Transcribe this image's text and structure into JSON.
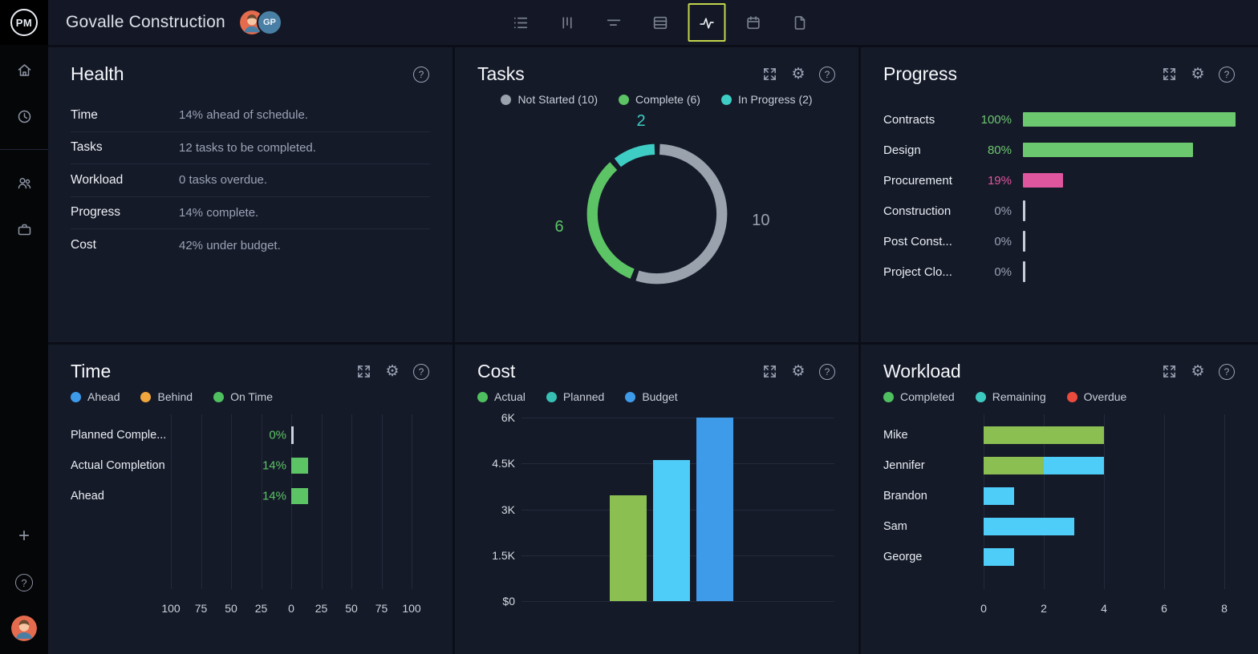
{
  "colors": {
    "accent_selected_border": "#c2d54b",
    "panel_bg": "#151a29",
    "green": "#5cc464",
    "olive_green": "#8cbf52",
    "teal": "#3ecdc4",
    "light_blue": "#4ecdf8",
    "blue": "#3d9bea",
    "orange": "#f0a63c",
    "red": "#ea4b3d",
    "pink": "#e0569e",
    "gray_series": "#9aa2ae"
  },
  "header": {
    "logo": "PM",
    "title": "Govalle Construction",
    "avatar_initials": "GP",
    "toolbar": {
      "items": [
        "list-view",
        "board-view",
        "gantt-view",
        "sheet-view",
        "activity-view",
        "calendar-view",
        "docs-view"
      ],
      "selected": "activity-view"
    }
  },
  "sidebar": {
    "top_icons": [
      "home",
      "recent",
      "team",
      "portfolio"
    ],
    "bottom_icons": [
      "add-new",
      "help"
    ]
  },
  "panels": {
    "health": {
      "title": "Health",
      "rows": [
        {
          "label": "Time",
          "value": "14% ahead of schedule."
        },
        {
          "label": "Tasks",
          "value": "12 tasks to be completed."
        },
        {
          "label": "Workload",
          "value": "0 tasks overdue."
        },
        {
          "label": "Progress",
          "value": "14% complete."
        },
        {
          "label": "Cost",
          "value": "42% under budget."
        }
      ]
    },
    "tasks": {
      "title": "Tasks"
    },
    "progress": {
      "title": "Progress"
    },
    "time": {
      "title": "Time"
    },
    "cost": {
      "title": "Cost"
    },
    "workload": {
      "title": "Workload"
    }
  },
  "chart_data": [
    {
      "panel": "tasks",
      "type": "pie",
      "donut": true,
      "labels": [
        "Not Started",
        "Complete",
        "In Progress"
      ],
      "values": [
        10,
        6,
        2
      ],
      "legend_labels": [
        "Not Started (10)",
        "Complete (6)",
        "In Progress (2)"
      ],
      "colors": [
        "#9aa2ae",
        "#5cc464",
        "#3ecdc4"
      ],
      "callout_labels": {
        "top": "2",
        "left": "6",
        "right": "10"
      },
      "legend_position": "top"
    },
    {
      "panel": "progress",
      "type": "bar",
      "orientation": "horizontal",
      "unit": "%",
      "categories": [
        "Contracts",
        "Design",
        "Procurement",
        "Construction",
        "Post Const...",
        "Project Clo..."
      ],
      "values": [
        100,
        80,
        19,
        0,
        0,
        0
      ],
      "value_labels": [
        "100%",
        "80%",
        "19%",
        "0%",
        "0%",
        "0%"
      ],
      "bar_colors": [
        "#6cc86e",
        "#6cc86e",
        "#e0569e",
        "none",
        "none",
        "none"
      ],
      "label_colors": [
        "#6cc86e",
        "#6cc86e",
        "#e0569e",
        "#98a0b0",
        "#98a0b0",
        "#98a0b0"
      ],
      "xlim": [
        0,
        100
      ],
      "grid": false
    },
    {
      "panel": "time",
      "type": "bar",
      "orientation": "horizontal",
      "unit": "%",
      "legend": [
        {
          "label": "Ahead",
          "color": "#3d9bea"
        },
        {
          "label": "Behind",
          "color": "#f0a63c"
        },
        {
          "label": "On Time",
          "color": "#4fc05f"
        }
      ],
      "categories": [
        "Planned Comple...",
        "Actual Completion",
        "Ahead"
      ],
      "values": [
        0,
        14,
        14
      ],
      "value_labels": [
        "0%",
        "14%",
        "14%"
      ],
      "bar_color": "#5cc464",
      "xlim": [
        -100,
        100
      ],
      "xticks": [
        "100",
        "75",
        "50",
        "25",
        "0",
        "25",
        "50",
        "75",
        "100"
      ],
      "grid": true
    },
    {
      "panel": "cost",
      "type": "bar",
      "orientation": "vertical",
      "legend": [
        {
          "label": "Actual",
          "color": "#4fc05f"
        },
        {
          "label": "Planned",
          "color": "#38bfb4"
        },
        {
          "label": "Budget",
          "color": "#3d9bea"
        }
      ],
      "categories": [
        "Actual",
        "Planned",
        "Budget"
      ],
      "values": [
        3450,
        4600,
        6000
      ],
      "bar_colors": [
        "#8cbf52",
        "#4ecdf8",
        "#3d9bea"
      ],
      "ylim": [
        0,
        6000
      ],
      "yticks": [
        "$0",
        "1.5K",
        "3K",
        "4.5K",
        "6K"
      ],
      "grid": true
    },
    {
      "panel": "workload",
      "type": "bar",
      "stacked": true,
      "orientation": "horizontal",
      "legend": [
        {
          "label": "Completed",
          "color": "#4fc05f"
        },
        {
          "label": "Remaining",
          "color": "#3ec9c0"
        },
        {
          "label": "Overdue",
          "color": "#ea4b3d"
        }
      ],
      "categories": [
        "Mike",
        "Jennifer",
        "Brandon",
        "Sam",
        "George"
      ],
      "series": [
        {
          "name": "Completed",
          "color": "#8cbf52",
          "values": [
            4,
            2,
            0,
            0,
            0
          ]
        },
        {
          "name": "Remaining",
          "color": "#4ecdf8",
          "values": [
            0,
            2,
            1,
            3,
            1
          ]
        },
        {
          "name": "Overdue",
          "color": "#ea4b3d",
          "values": [
            0,
            0,
            0,
            0,
            0
          ]
        }
      ],
      "xlim": [
        0,
        8
      ],
      "xticks": [
        "0",
        "2",
        "4",
        "6",
        "8"
      ],
      "grid": true
    }
  ]
}
